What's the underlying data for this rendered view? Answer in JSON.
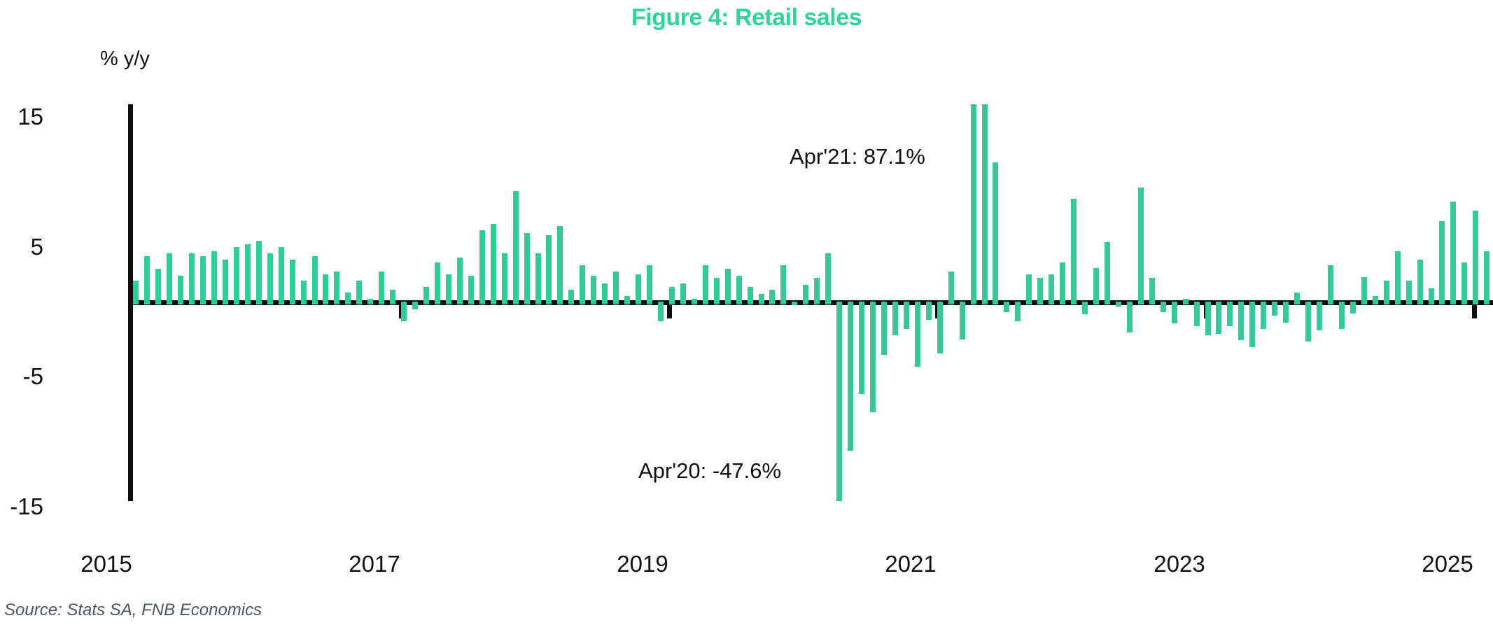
{
  "title": "Figure 4: Retail sales",
  "y_axis_unit": "% y/y",
  "source": "Source: Stats SA, FNB Economics",
  "annotations": {
    "apr21": "Apr'21: 87.1%",
    "apr20": "Apr'20: -47.6%"
  },
  "colors": {
    "bar": "#34c998",
    "title": "#31d49f",
    "axis": "#0d0d0d",
    "text": "#111111",
    "source_text": "#46585c"
  },
  "chart_data": {
    "type": "bar",
    "title": "Figure 4: Retail sales",
    "xlabel": "",
    "ylabel": "% y/y",
    "frequency": "monthly",
    "start": "2015-01",
    "end": "2025-02",
    "y_ticks": [
      15,
      5,
      -5,
      -15
    ],
    "x_ticks": [
      "2015",
      "2017",
      "2019",
      "2021",
      "2023",
      "2025"
    ],
    "ylim_drawn": [
      -15.3,
      15.3
    ],
    "grid": false,
    "legend": false,
    "clipped_points": [
      "2020-04",
      "2021-04",
      "2021-05"
    ],
    "annotations": [
      {
        "text": "Apr'21: 87.1%",
        "month": "2021-04",
        "value": 87.1
      },
      {
        "text": "Apr'20: -47.6%",
        "month": "2020-04",
        "value": -47.6
      }
    ],
    "categories": [
      "2015-01",
      "2015-02",
      "2015-03",
      "2015-04",
      "2015-05",
      "2015-06",
      "2015-07",
      "2015-08",
      "2015-09",
      "2015-10",
      "2015-11",
      "2015-12",
      "2016-01",
      "2016-02",
      "2016-03",
      "2016-04",
      "2016-05",
      "2016-06",
      "2016-07",
      "2016-08",
      "2016-09",
      "2016-10",
      "2016-11",
      "2016-12",
      "2017-01",
      "2017-02",
      "2017-03",
      "2017-04",
      "2017-05",
      "2017-06",
      "2017-07",
      "2017-08",
      "2017-09",
      "2017-10",
      "2017-11",
      "2017-12",
      "2018-01",
      "2018-02",
      "2018-03",
      "2018-04",
      "2018-05",
      "2018-06",
      "2018-07",
      "2018-08",
      "2018-09",
      "2018-10",
      "2018-11",
      "2018-12",
      "2019-01",
      "2019-02",
      "2019-03",
      "2019-04",
      "2019-05",
      "2019-06",
      "2019-07",
      "2019-08",
      "2019-09",
      "2019-10",
      "2019-11",
      "2019-12",
      "2020-01",
      "2020-02",
      "2020-03",
      "2020-04",
      "2020-05",
      "2020-06",
      "2020-07",
      "2020-08",
      "2020-09",
      "2020-10",
      "2020-11",
      "2020-12",
      "2021-01",
      "2021-02",
      "2021-03",
      "2021-04",
      "2021-05",
      "2021-06",
      "2021-07",
      "2021-08",
      "2021-09",
      "2021-10",
      "2021-11",
      "2021-12",
      "2022-01",
      "2022-02",
      "2022-03",
      "2022-04",
      "2022-05",
      "2022-06",
      "2022-07",
      "2022-08",
      "2022-09",
      "2022-10",
      "2022-11",
      "2022-12",
      "2023-01",
      "2023-02",
      "2023-03",
      "2023-04",
      "2023-05",
      "2023-06",
      "2023-07",
      "2023-08",
      "2023-09",
      "2023-10",
      "2023-11",
      "2023-12",
      "2024-01",
      "2024-02",
      "2024-03",
      "2024-04",
      "2024-05",
      "2024-06",
      "2024-07",
      "2024-08",
      "2024-09",
      "2024-10",
      "2024-11",
      "2024-12",
      "2025-01",
      "2025-02"
    ],
    "values": [
      1.7,
      3.6,
      2.6,
      3.8,
      2.1,
      3.8,
      3.6,
      4.0,
      3.3,
      4.3,
      4.5,
      4.8,
      3.8,
      4.3,
      3.3,
      1.7,
      3.6,
      2.2,
      2.4,
      0.8,
      1.7,
      0.3,
      2.4,
      1.0,
      -1.4,
      -0.5,
      1.2,
      3.1,
      2.2,
      3.5,
      2.1,
      5.6,
      6.1,
      3.8,
      8.6,
      5.4,
      3.8,
      5.2,
      5.9,
      1.0,
      2.9,
      2.1,
      1.5,
      2.4,
      0.5,
      2.2,
      2.9,
      -1.4,
      1.2,
      1.5,
      0.3,
      2.9,
      1.9,
      2.6,
      2.1,
      1.2,
      0.7,
      1.0,
      2.9,
      -0.2,
      1.4,
      1.9,
      3.8,
      -47.6,
      -11.4,
      -7.0,
      -8.4,
      -4.0,
      -2.5,
      -2.0,
      -4.9,
      -1.3,
      -3.9,
      2.4,
      -2.8,
      87.1,
      15.8,
      10.8,
      -0.7,
      -1.4,
      2.2,
      1.9,
      2.2,
      3.1,
      8.0,
      -0.9,
      2.7,
      4.7,
      -0.3,
      -2.3,
      8.9,
      1.9,
      -0.7,
      -1.6,
      0.3,
      -1.8,
      -2.5,
      -2.4,
      -1.8,
      -2.9,
      -3.4,
      -2.0,
      -1.0,
      -1.5,
      0.8,
      -3.0,
      -2.1,
      2.9,
      -2.0,
      -0.8,
      2.0,
      0.5,
      1.7,
      4.0,
      1.7,
      3.3,
      1.1,
      6.3,
      7.8,
      3.1,
      7.1,
      4.0
    ]
  }
}
